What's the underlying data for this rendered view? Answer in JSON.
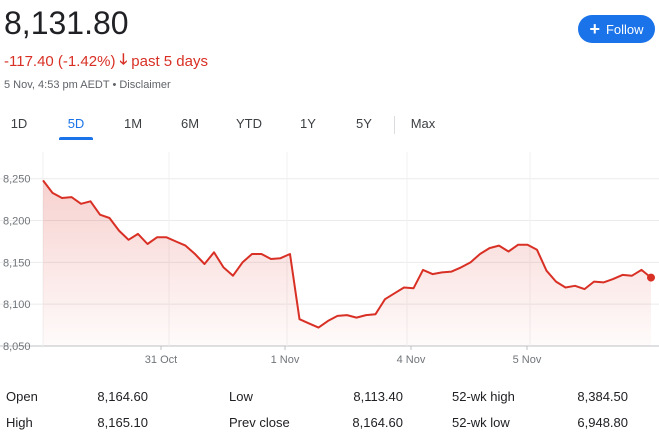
{
  "header": {
    "price": "8,131.80",
    "change": "-117.40 (-1.42%)",
    "change_period": "past 5 days",
    "timestamp": "5 Nov, 4:53 pm AEDT",
    "disclaimer": "Disclaimer",
    "meta_separator": "•",
    "follow_label": "Follow",
    "accent_color": "#1a73e8",
    "negative_color": "#d93025"
  },
  "tabs": [
    {
      "label": "1D",
      "active": false
    },
    {
      "label": "5D",
      "active": true
    },
    {
      "label": "1M",
      "active": false
    },
    {
      "label": "6M",
      "active": false
    },
    {
      "label": "YTD",
      "active": false
    },
    {
      "label": "1Y",
      "active": false
    },
    {
      "label": "5Y",
      "active": false
    },
    {
      "label": "Max",
      "active": false
    }
  ],
  "chart_data": {
    "type": "area",
    "y_ticks": [
      "8,250",
      "8,200",
      "8,150",
      "8,100",
      "8,050"
    ],
    "x_labels": [
      "31 Oct",
      "1 Nov",
      "4 Nov",
      "5 Nov"
    ],
    "ylim": [
      8050,
      8270
    ],
    "grid": true,
    "line_color": "#d93025",
    "values": [
      8248,
      8233,
      8227,
      8228,
      8220,
      8223,
      8207,
      8203,
      8188,
      8177,
      8184,
      8172,
      8180,
      8180,
      8175,
      8170,
      8160,
      8148,
      8162,
      8144,
      8134,
      8150,
      8160,
      8160,
      8154,
      8155,
      8160,
      8082,
      8077,
      8072,
      8080,
      8086,
      8087,
      8084,
      8087,
      8088,
      8106,
      8113,
      8120,
      8119,
      8141,
      8136,
      8138,
      8139,
      8144,
      8150,
      8160,
      8167,
      8170,
      8163,
      8171,
      8171,
      8165,
      8140,
      8127,
      8120,
      8122,
      8118,
      8127,
      8126,
      8130,
      8135,
      8134,
      8141,
      8131.8
    ]
  },
  "stats": {
    "row1": [
      {
        "label": "Open",
        "value": "8,164.60"
      },
      {
        "label": "Low",
        "value": "8,113.40"
      },
      {
        "label": "52-wk high",
        "value": "8,384.50"
      }
    ],
    "row2": [
      {
        "label": "High",
        "value": "8,165.10"
      },
      {
        "label": "Prev close",
        "value": "8,164.60"
      },
      {
        "label": "52-wk low",
        "value": "6,948.80"
      }
    ]
  }
}
